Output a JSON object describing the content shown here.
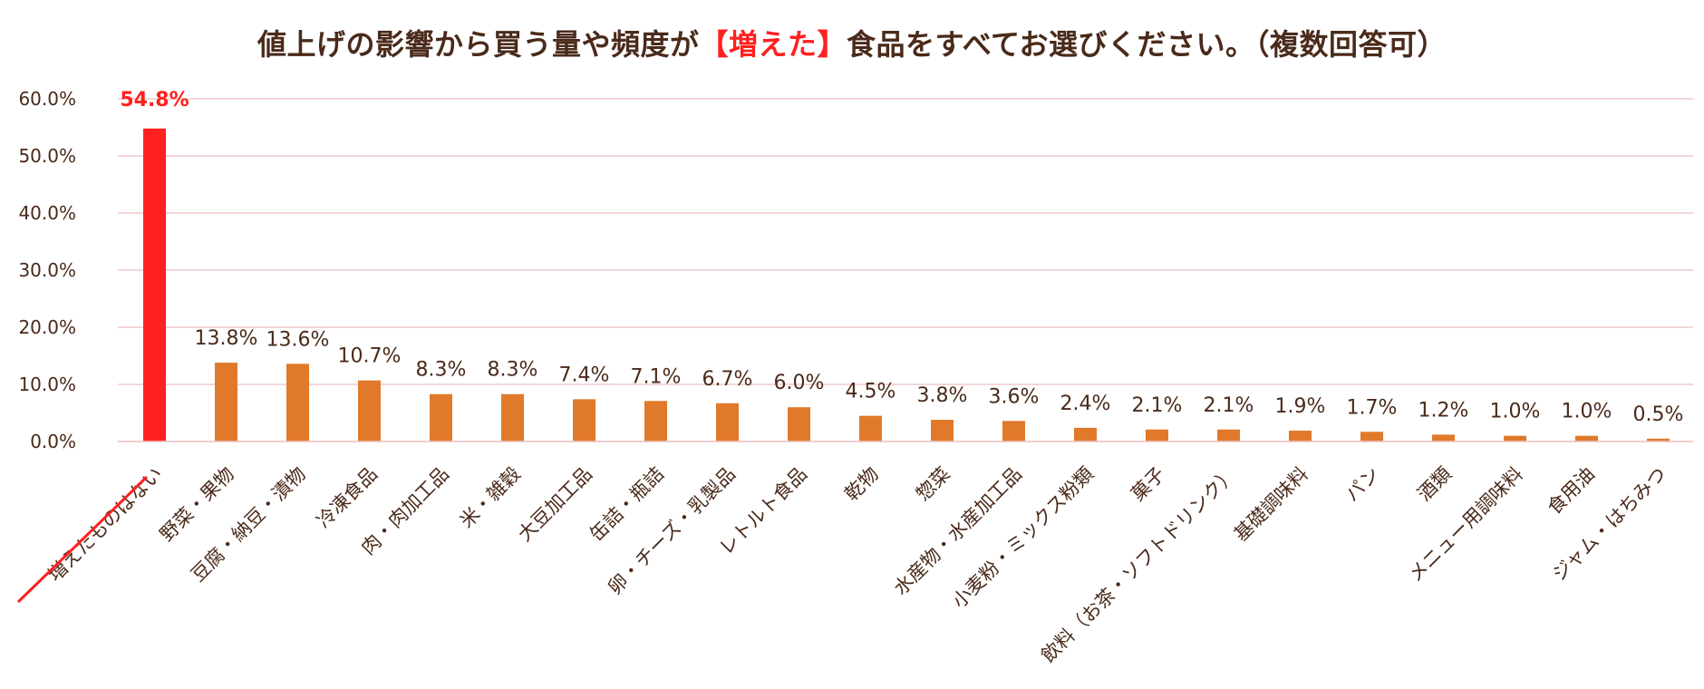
{
  "title": {
    "prefix": "値上げの影響から買う量や頻度が",
    "highlight": "【増えた】",
    "suffix": "食品をすべてお選びください。（複数回答可）"
  },
  "colors": {
    "bar": "#e07a2a",
    "highlight_bar": "#ff2020",
    "grid": "#f0c8c8",
    "text": "#4a2a1a"
  },
  "chart_data": {
    "type": "bar",
    "ylim": [
      0,
      60
    ],
    "y_ticks": [
      "0.0%",
      "10.0%",
      "20.0%",
      "30.0%",
      "40.0%",
      "50.0%",
      "60.0%"
    ],
    "grid": true,
    "categories": [
      "増えたものはない",
      "野菜・果物",
      "豆腐・納豆・漬物",
      "冷凍食品",
      "肉・肉加工品",
      "米・雑穀",
      "大豆加工品",
      "缶詰・瓶詰",
      "卵・チーズ・乳製品",
      "レトルト食品",
      "乾物",
      "惣菜",
      "水産物・水産加工品",
      "小麦粉・ミックス粉類",
      "菓子",
      "飲料（お茶・ソフトドリンク）",
      "基礎調味料",
      "パン",
      "酒類",
      "メニュー用調味料",
      "食用油",
      "ジャム・はちみつ"
    ],
    "values": [
      54.8,
      13.8,
      13.6,
      10.7,
      8.3,
      8.3,
      7.4,
      7.1,
      6.7,
      6.0,
      4.5,
      3.8,
      3.6,
      2.4,
      2.1,
      2.1,
      1.9,
      1.7,
      1.2,
      1.0,
      1.0,
      0.5
    ],
    "labels": [
      "54.8%",
      "13.8%",
      "13.6%",
      "10.7%",
      "8.3%",
      "8.3%",
      "7.4%",
      "7.1%",
      "6.7%",
      "6.0%",
      "4.5%",
      "3.8%",
      "3.6%",
      "2.4%",
      "2.1%",
      "2.1%",
      "1.9%",
      "1.7%",
      "1.2%",
      "1.0%",
      "1.0%",
      "0.5%"
    ],
    "highlight_index": 0
  }
}
